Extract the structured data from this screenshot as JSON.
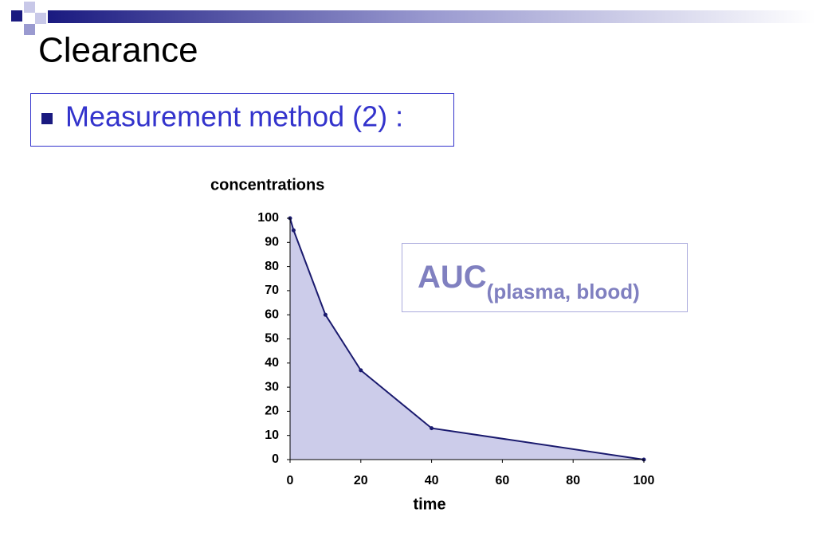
{
  "title": "Clearance",
  "bullet": "Measurement method (2) :",
  "chart_data": {
    "type": "area",
    "y_label": "concentrations",
    "x_label": "time",
    "x": [
      0,
      1,
      10,
      20,
      40,
      100
    ],
    "values": [
      100,
      95,
      60,
      37,
      13,
      0
    ],
    "color": "#1a1a6e",
    "fill_color": "#ccccea",
    "xlim": [
      0,
      100
    ],
    "xticks": [
      0,
      20,
      40,
      60,
      80,
      100
    ],
    "ylim": [
      0,
      100
    ],
    "yticks": [
      0,
      10,
      20,
      30,
      40,
      50,
      60,
      70,
      80,
      90,
      100
    ],
    "annotation": {
      "main": "AUC",
      "subscript": "(plasma, blood)"
    }
  }
}
